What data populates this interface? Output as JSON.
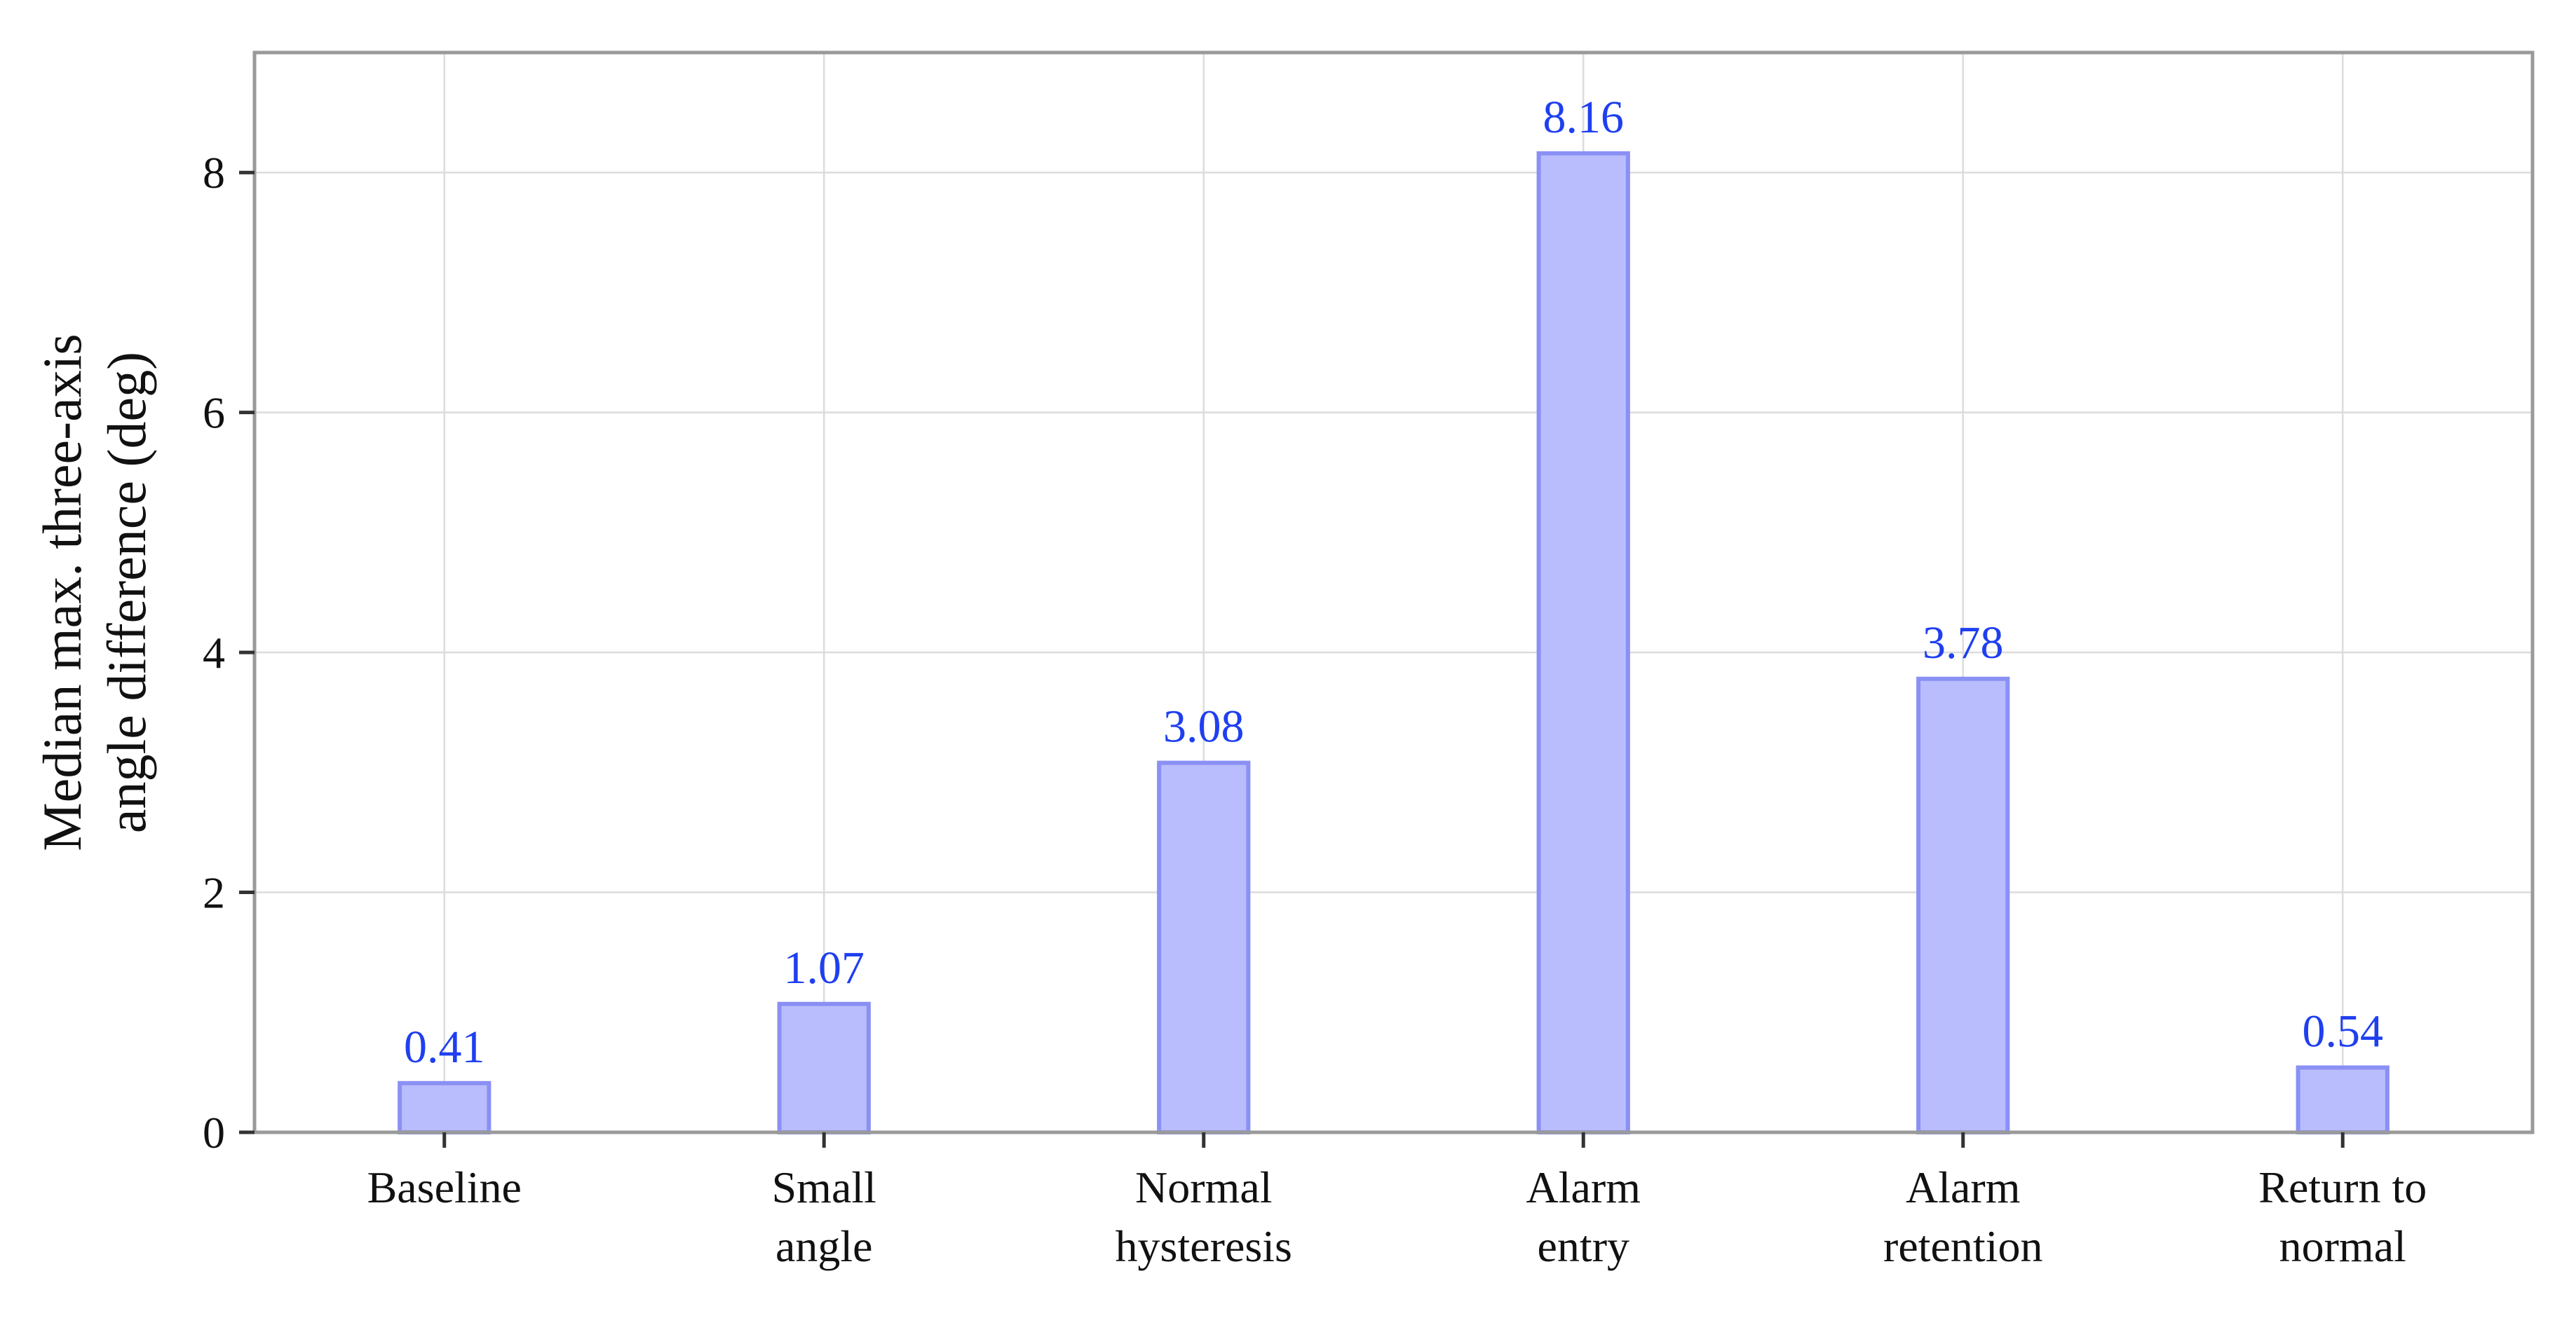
{
  "chart_data": {
    "type": "bar",
    "categories": [
      [
        "Baseline"
      ],
      [
        "Small",
        "angle"
      ],
      [
        "Normal",
        "hysteresis"
      ],
      [
        "Alarm",
        "entry"
      ],
      [
        "Alarm",
        "retention"
      ],
      [
        "Return to",
        "normal"
      ]
    ],
    "values": [
      0.41,
      1.07,
      3.08,
      8.16,
      3.78,
      0.54
    ],
    "data_labels": [
      "0.41",
      "1.07",
      "3.08",
      "8.16",
      "3.78",
      "0.54"
    ],
    "ylabel": [
      "Median max. three-axis",
      "angle difference (deg)"
    ],
    "xlabel": "",
    "ylim": [
      0,
      9
    ],
    "yticks": [
      0,
      2,
      4,
      6,
      8
    ],
    "grid": true,
    "legend": "none",
    "colors": {
      "bar_fill": "#b9bdfd",
      "bar_edge": "#8a90f4",
      "value_label": "#1f3ff0"
    }
  }
}
